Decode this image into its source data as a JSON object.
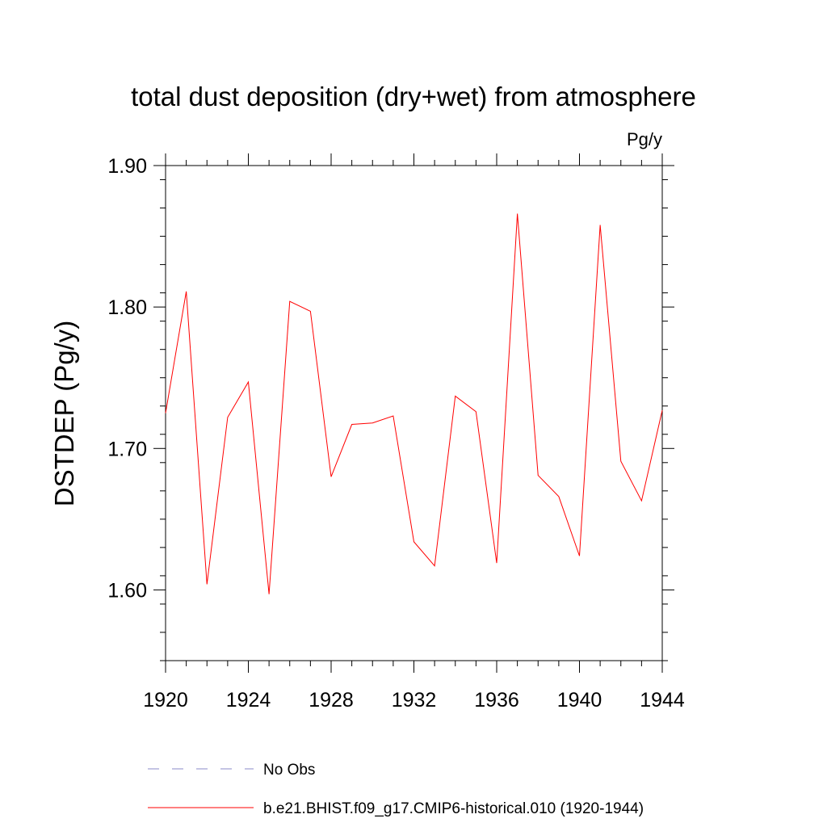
{
  "chart_data": {
    "type": "line",
    "title": "total dust deposition (dry+wet) from atmosphere",
    "units_label": "Pg/y",
    "ylabel": "DSTDEP  (Pg/y)",
    "xlabel": "",
    "xlim": [
      1920,
      1944
    ],
    "ylim": [
      1.55,
      1.9
    ],
    "x_ticks": [
      1920,
      1924,
      1928,
      1932,
      1936,
      1940,
      1944
    ],
    "x_tick_labels": [
      "1920",
      "1924",
      "1928",
      "1932",
      "1936",
      "1940",
      "1944"
    ],
    "y_ticks": [
      1.6,
      1.7,
      1.8,
      1.9
    ],
    "y_tick_labels": [
      "1.60",
      "1.70",
      "1.80",
      "1.90"
    ],
    "x": [
      1920,
      1921,
      1922,
      1923,
      1924,
      1925,
      1926,
      1927,
      1928,
      1929,
      1930,
      1931,
      1932,
      1933,
      1934,
      1935,
      1936,
      1937,
      1938,
      1939,
      1940,
      1941,
      1942,
      1943,
      1944
    ],
    "series": [
      {
        "name": "b.e21.BHIST.f09_g17.CMIP6-historical.010 (1920-1944)",
        "color": "#ff0000",
        "values": [
          1.725,
          1.811,
          1.604,
          1.722,
          1.747,
          1.597,
          1.804,
          1.797,
          1.68,
          1.717,
          1.718,
          1.723,
          1.634,
          1.617,
          1.737,
          1.726,
          1.619,
          1.866,
          1.681,
          1.666,
          1.624,
          1.858,
          1.691,
          1.663,
          1.727
        ]
      }
    ],
    "legend": {
      "placement": "bottom",
      "entries": [
        {
          "label": "No Obs",
          "style": "dashed",
          "color": "#8a8ac8"
        },
        {
          "label": "b.e21.BHIST.f09_g17.CMIP6-historical.010 (1920-1944)",
          "style": "solid",
          "color": "#ff0000"
        }
      ]
    },
    "grid": false
  }
}
